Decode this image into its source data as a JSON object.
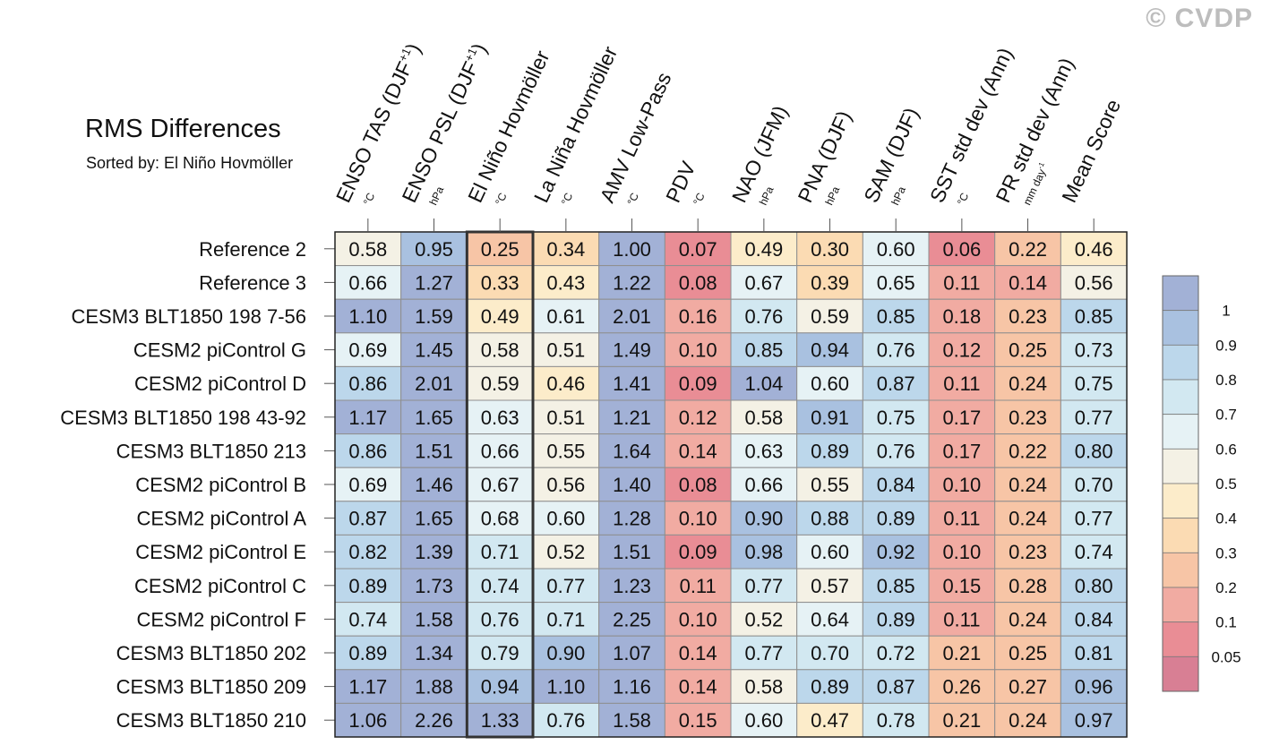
{
  "watermark": "© CVDP",
  "chart_data": {
    "type": "heatmap",
    "title": "RMS Differences",
    "subtitle": "Sorted by: El Niño Hovmöller",
    "highlight_column": 2,
    "columns": [
      {
        "label": "ENSO TAS (DJF",
        "sup": "+1",
        "tail": ")",
        "unit": "°C"
      },
      {
        "label": "ENSO PSL (DJF",
        "sup": "+1",
        "tail": ")",
        "unit": "hPa"
      },
      {
        "label": "El Niño Hovmöller",
        "sup": "",
        "tail": "",
        "unit": "°C"
      },
      {
        "label": "La Niña Hovmöller",
        "sup": "",
        "tail": "",
        "unit": "°C"
      },
      {
        "label": "AMV Low-Pass",
        "sup": "",
        "tail": "",
        "unit": "°C"
      },
      {
        "label": "PDV",
        "sup": "",
        "tail": "",
        "unit": "°C"
      },
      {
        "label": "NAO (JFM)",
        "sup": "",
        "tail": "",
        "unit": "hPa"
      },
      {
        "label": "PNA (DJF)",
        "sup": "",
        "tail": "",
        "unit": "hPa"
      },
      {
        "label": "SAM (DJF)",
        "sup": "",
        "tail": "",
        "unit": "hPa"
      },
      {
        "label": "SST std dev (Ann)",
        "sup": "",
        "tail": "",
        "unit": "°C"
      },
      {
        "label": "PR std dev (Ann)",
        "sup": "",
        "tail": "",
        "unit": "mm day",
        "unit_sup": "-1"
      },
      {
        "label": "Mean Score",
        "sup": "",
        "tail": "",
        "unit": ""
      }
    ],
    "rows": [
      {
        "name": "Reference 2",
        "values": [
          "0.58",
          "0.95",
          "0.25",
          "0.34",
          "1.00",
          "0.07",
          "0.49",
          "0.30",
          "0.60",
          "0.06",
          "0.22",
          "0.46"
        ]
      },
      {
        "name": "Reference 3",
        "values": [
          "0.66",
          "1.27",
          "0.33",
          "0.43",
          "1.22",
          "0.08",
          "0.67",
          "0.39",
          "0.65",
          "0.11",
          "0.14",
          "0.56"
        ]
      },
      {
        "name": "CESM3 BLT1850 198 7-56",
        "values": [
          "1.10",
          "1.59",
          "0.49",
          "0.61",
          "2.01",
          "0.16",
          "0.76",
          "0.59",
          "0.85",
          "0.18",
          "0.23",
          "0.85"
        ]
      },
      {
        "name": "CESM2 piControl G",
        "values": [
          "0.69",
          "1.45",
          "0.58",
          "0.51",
          "1.49",
          "0.10",
          "0.85",
          "0.94",
          "0.76",
          "0.12",
          "0.25",
          "0.73"
        ]
      },
      {
        "name": "CESM2 piControl D",
        "values": [
          "0.86",
          "2.01",
          "0.59",
          "0.46",
          "1.41",
          "0.09",
          "1.04",
          "0.60",
          "0.87",
          "0.11",
          "0.24",
          "0.75"
        ]
      },
      {
        "name": "CESM3 BLT1850 198 43-92",
        "values": [
          "1.17",
          "1.65",
          "0.63",
          "0.51",
          "1.21",
          "0.12",
          "0.58",
          "0.91",
          "0.75",
          "0.17",
          "0.23",
          "0.77"
        ]
      },
      {
        "name": "CESM3 BLT1850 213",
        "values": [
          "0.86",
          "1.51",
          "0.66",
          "0.55",
          "1.64",
          "0.14",
          "0.63",
          "0.89",
          "0.76",
          "0.17",
          "0.22",
          "0.80"
        ]
      },
      {
        "name": "CESM2 piControl B",
        "values": [
          "0.69",
          "1.46",
          "0.67",
          "0.56",
          "1.40",
          "0.08",
          "0.66",
          "0.55",
          "0.84",
          "0.10",
          "0.24",
          "0.70"
        ]
      },
      {
        "name": "CESM2 piControl A",
        "values": [
          "0.87",
          "1.65",
          "0.68",
          "0.60",
          "1.28",
          "0.10",
          "0.90",
          "0.88",
          "0.89",
          "0.11",
          "0.24",
          "0.77"
        ]
      },
      {
        "name": "CESM2 piControl E",
        "values": [
          "0.82",
          "1.39",
          "0.71",
          "0.52",
          "1.51",
          "0.09",
          "0.98",
          "0.60",
          "0.92",
          "0.10",
          "0.23",
          "0.74"
        ]
      },
      {
        "name": "CESM2 piControl C",
        "values": [
          "0.89",
          "1.73",
          "0.74",
          "0.77",
          "1.23",
          "0.11",
          "0.77",
          "0.57",
          "0.85",
          "0.15",
          "0.28",
          "0.80"
        ]
      },
      {
        "name": "CESM2 piControl F",
        "values": [
          "0.74",
          "1.58",
          "0.76",
          "0.71",
          "2.25",
          "0.10",
          "0.52",
          "0.64",
          "0.89",
          "0.11",
          "0.24",
          "0.84"
        ]
      },
      {
        "name": "CESM3 BLT1850 202",
        "values": [
          "0.89",
          "1.34",
          "0.79",
          "0.90",
          "1.07",
          "0.14",
          "0.77",
          "0.70",
          "0.72",
          "0.21",
          "0.25",
          "0.81"
        ]
      },
      {
        "name": "CESM3 BLT1850 209",
        "values": [
          "1.17",
          "1.88",
          "0.94",
          "1.10",
          "1.16",
          "0.14",
          "0.58",
          "0.89",
          "0.87",
          "0.26",
          "0.27",
          "0.96"
        ]
      },
      {
        "name": "CESM3 BLT1850 210",
        "values": [
          "1.06",
          "2.26",
          "1.33",
          "0.76",
          "1.58",
          "0.15",
          "0.60",
          "0.47",
          "0.78",
          "0.21",
          "0.24",
          "0.97"
        ]
      }
    ],
    "colorbar": {
      "levels": [
        "1",
        "0.9",
        "0.8",
        "0.7",
        "0.6",
        "0.5",
        "0.4",
        "0.3",
        "0.2",
        "0.1",
        "0.05"
      ],
      "bin_thresholds": [
        1.0,
        0.9,
        0.8,
        0.7,
        0.6,
        0.5,
        0.4,
        0.3,
        0.2,
        0.1,
        0.05
      ],
      "colors": [
        "#a2b1d6",
        "#a9c1e0",
        "#bcd7eb",
        "#d2e8f1",
        "#e6f2f5",
        "#f4f1e5",
        "#fcecca",
        "#fbdbb3",
        "#f7c5a6",
        "#f1aba2",
        "#e98d95",
        "#d87f94"
      ]
    }
  }
}
